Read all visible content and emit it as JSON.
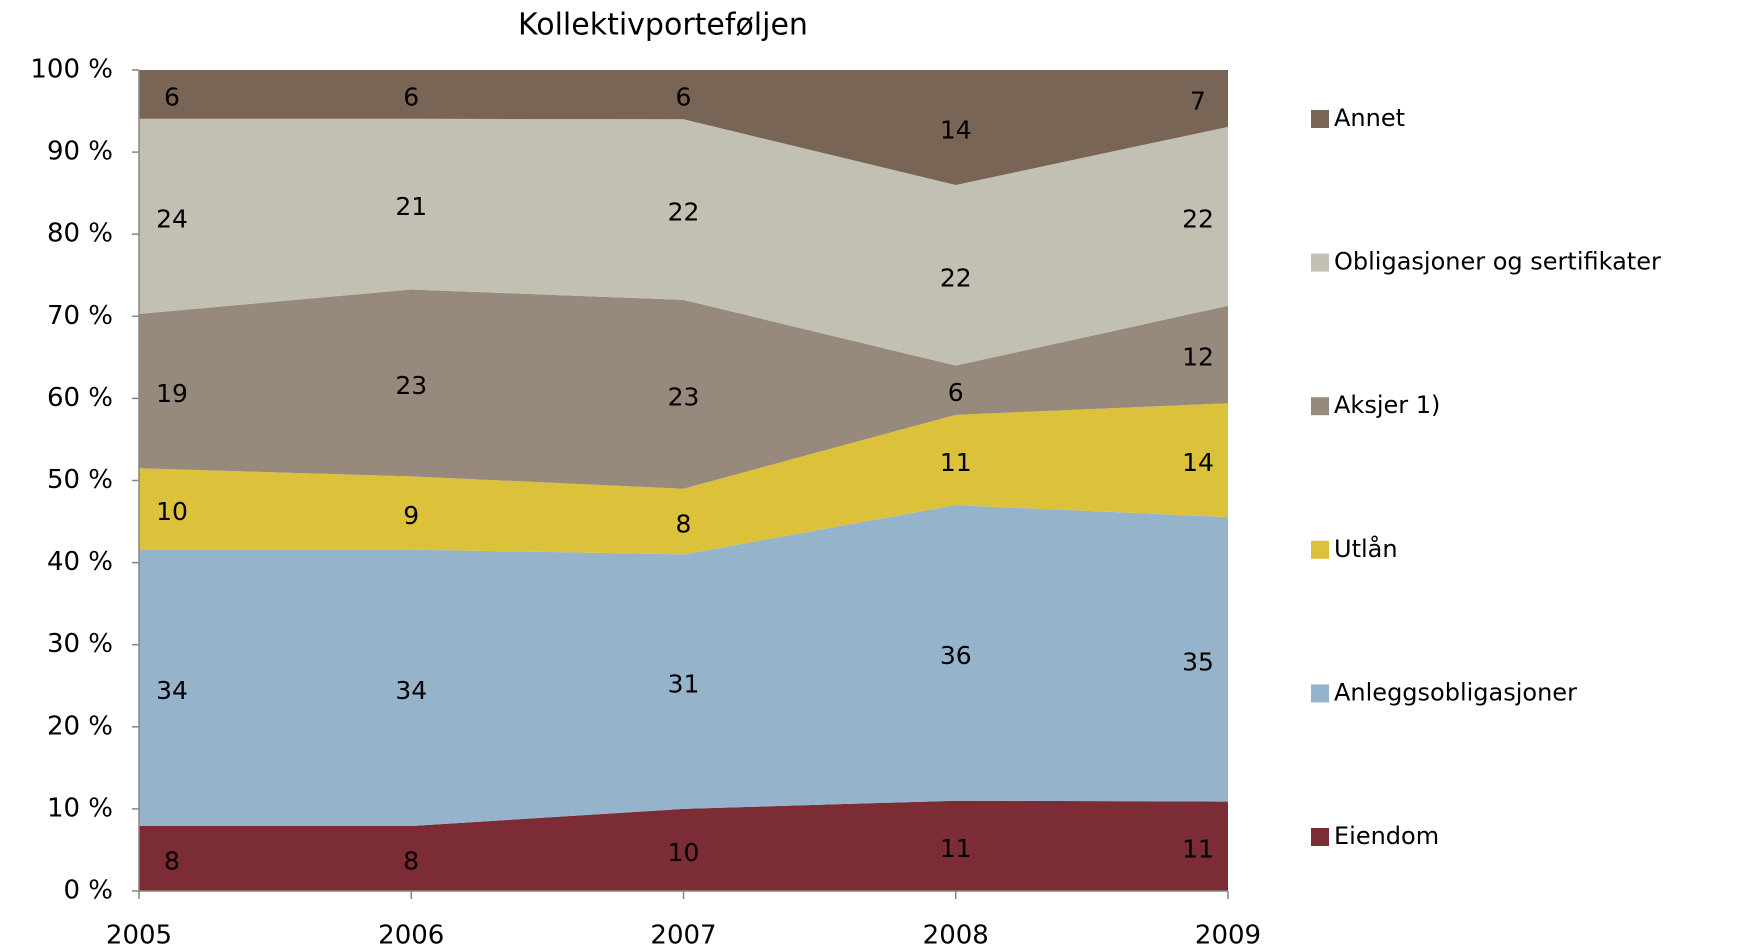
{
  "chart_data": {
    "type": "area",
    "stack": "percent",
    "title": "Kollektivporteføljen",
    "categories": [
      "2005",
      "2006",
      "2007",
      "2008",
      "2009"
    ],
    "series": [
      {
        "name": "Eiendom",
        "color": "#7b2c35",
        "values": [
          8,
          8,
          10,
          11,
          11
        ]
      },
      {
        "name": "Anleggsobligasjoner",
        "color": "#96b3cc",
        "values": [
          34,
          34,
          31,
          36,
          35
        ]
      },
      {
        "name": "Utlån",
        "color": "#dcc23a",
        "values": [
          10,
          9,
          8,
          11,
          14
        ]
      },
      {
        "name": "Aksjer 1)",
        "color": "#978a7c",
        "values": [
          19,
          23,
          23,
          6,
          12
        ]
      },
      {
        "name": "Obligasjoner og sertifikater",
        "color": "#c2c0b2",
        "values": [
          24,
          21,
          22,
          22,
          22
        ]
      },
      {
        "name": "Annet",
        "color": "#786556",
        "values": [
          6,
          6,
          6,
          14,
          7
        ]
      }
    ],
    "ylim": [
      0,
      100
    ],
    "yticks": [
      {
        "value": 0,
        "label": "0 %"
      },
      {
        "value": 10,
        "label": "10 %"
      },
      {
        "value": 20,
        "label": "20 %"
      },
      {
        "value": 30,
        "label": "30 %"
      },
      {
        "value": 40,
        "label": "40 %"
      },
      {
        "value": 50,
        "label": "50 %"
      },
      {
        "value": 60,
        "label": "60 %"
      },
      {
        "value": 70,
        "label": "70 %"
      },
      {
        "value": 80,
        "label": "80 %"
      },
      {
        "value": 90,
        "label": "90 %"
      },
      {
        "value": 100,
        "label": "100 %"
      }
    ],
    "legend": "right",
    "grid": false
  }
}
